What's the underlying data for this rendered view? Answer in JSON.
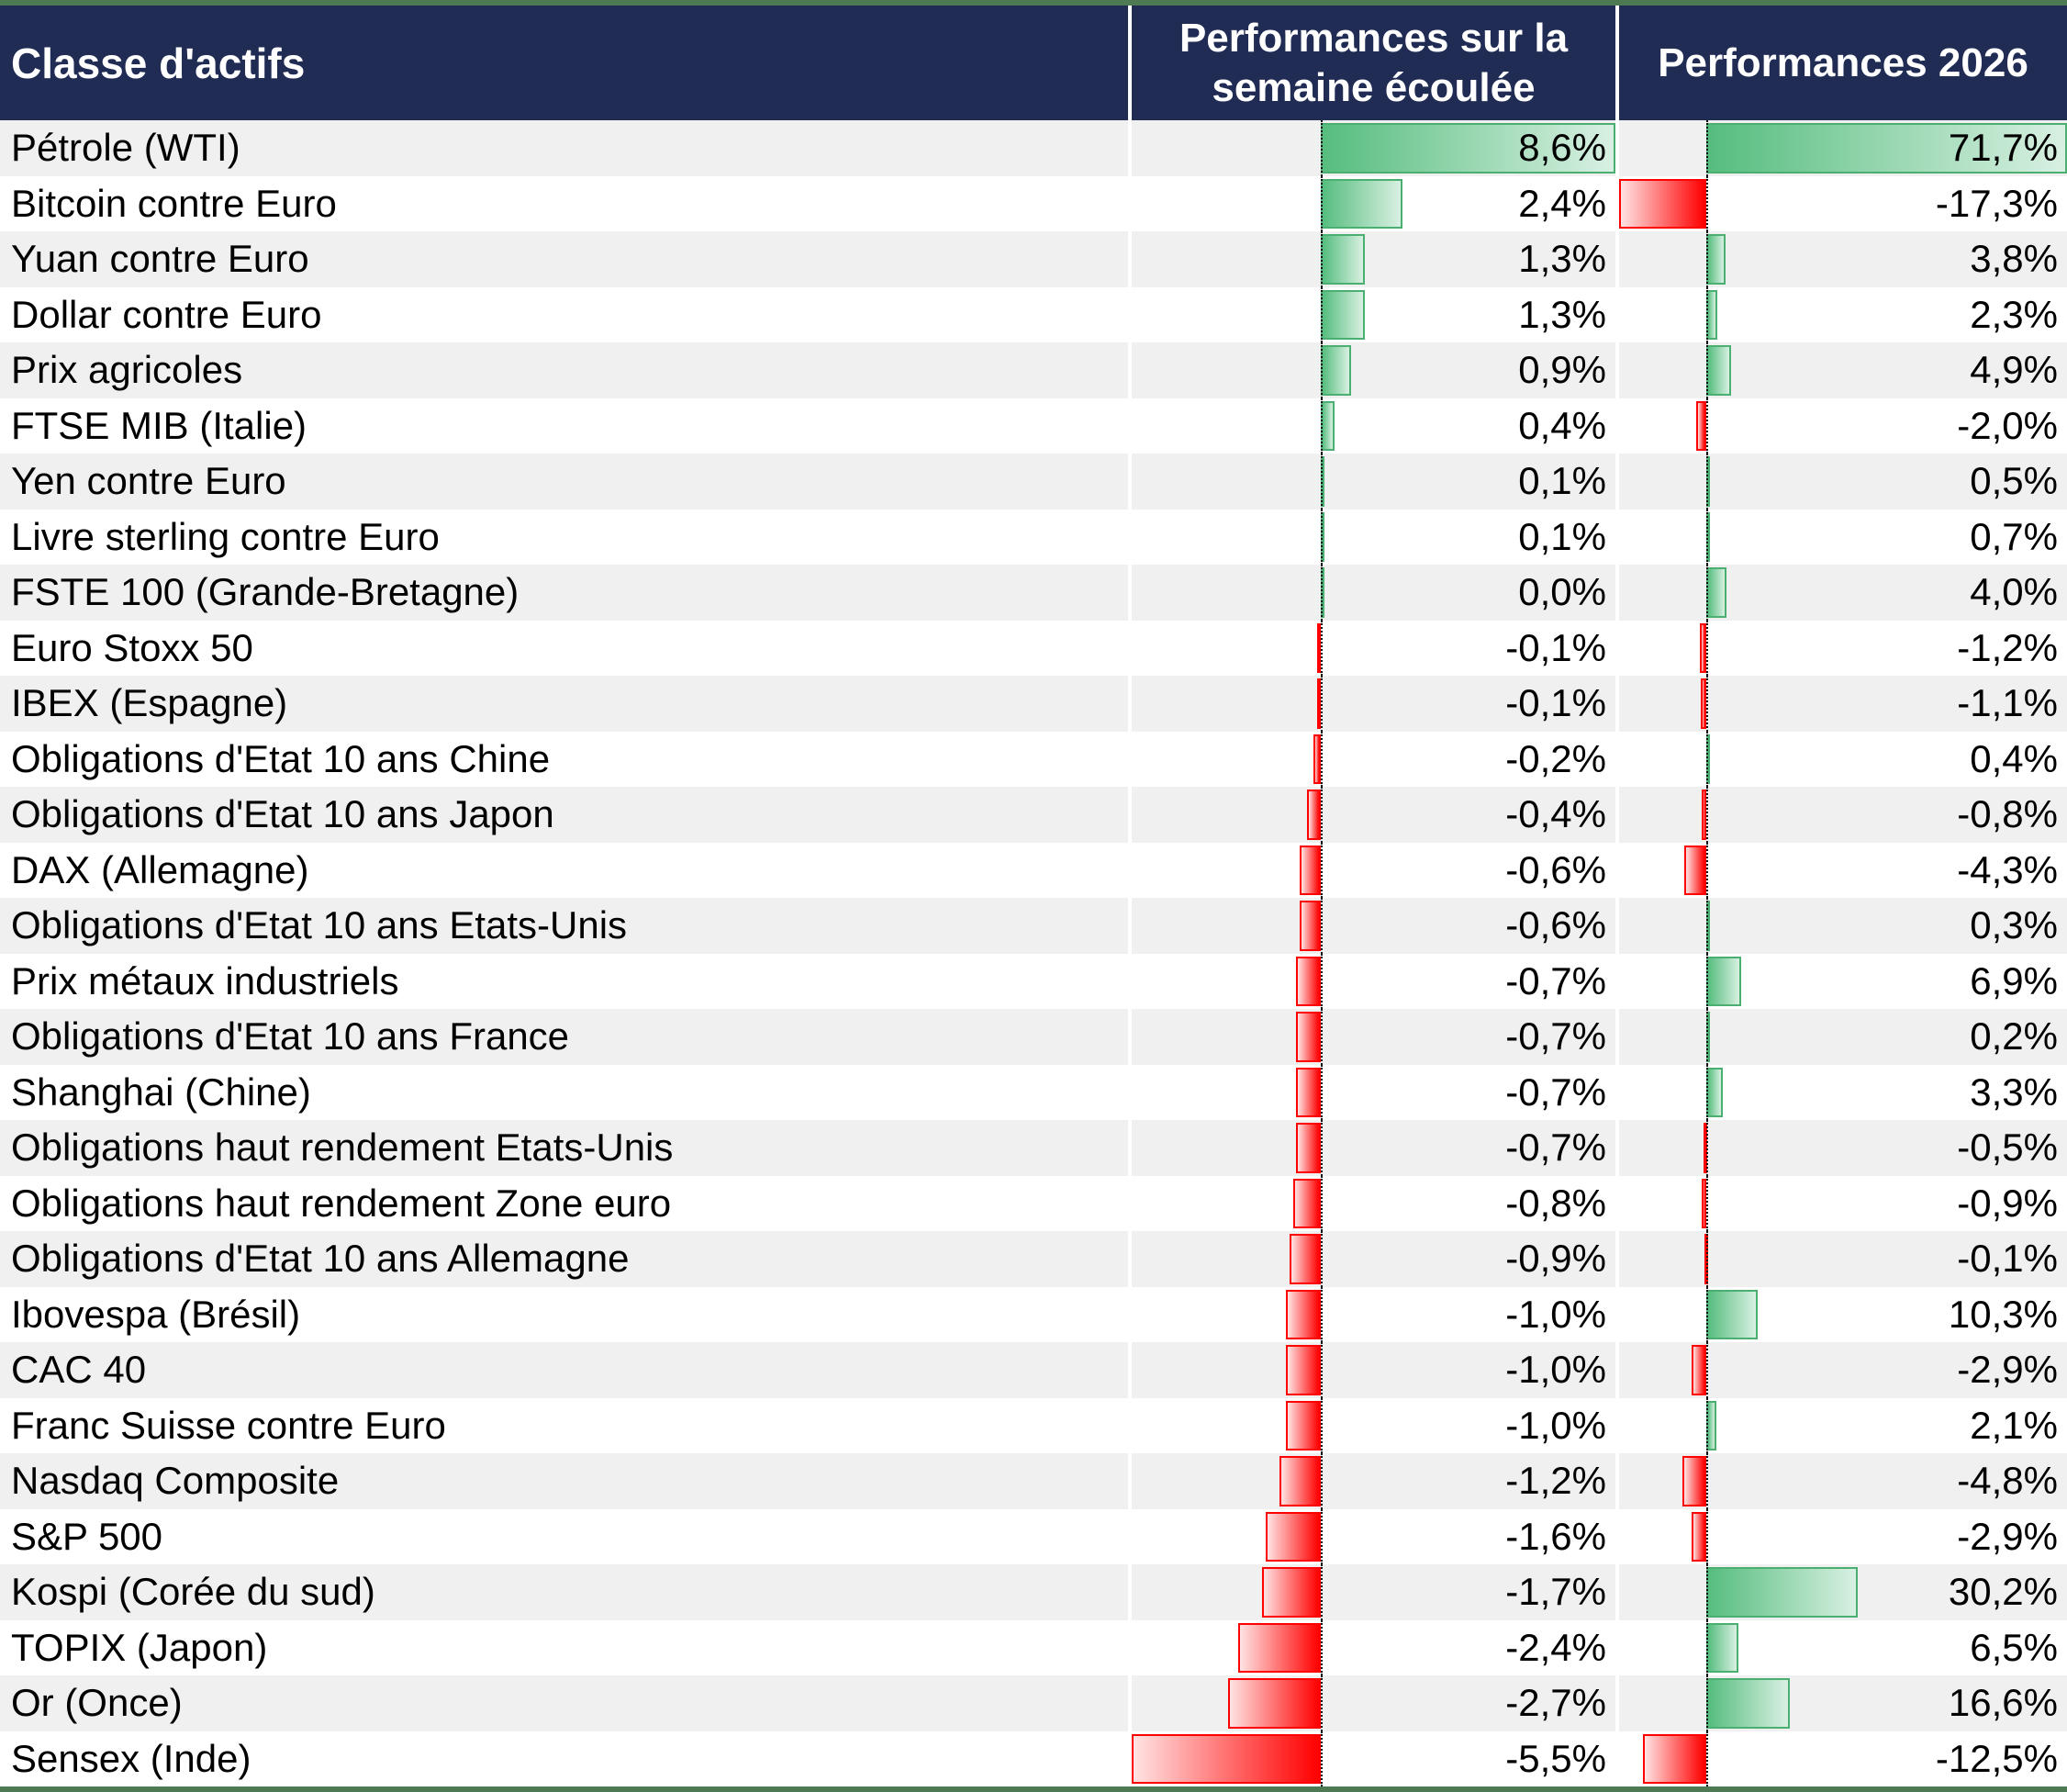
{
  "chart_data": {
    "type": "table",
    "title": "",
    "columns": [
      "Classe d'actifs",
      "Performances sur la semaine écoulée",
      "Performances 2026"
    ],
    "layout": {
      "grid": "striped-rows",
      "bars": "excel-gradient-databars",
      "axis": "dotted-zero-axis-per-column"
    },
    "bar_axes": {
      "week": {
        "min": -5.5,
        "max": 8.6
      },
      "ytd": {
        "min": -17.3,
        "max": 71.7
      }
    },
    "rows": [
      {
        "label": "Pétrole (WTI)",
        "week": 8.6,
        "week_display": "8,6%",
        "ytd": 71.7,
        "ytd_display": "71,7%"
      },
      {
        "label": "Bitcoin contre Euro",
        "week": 2.4,
        "week_display": "2,4%",
        "ytd": -17.3,
        "ytd_display": "-17,3%"
      },
      {
        "label": "Yuan contre Euro",
        "week": 1.3,
        "week_display": "1,3%",
        "ytd": 3.8,
        "ytd_display": "3,8%"
      },
      {
        "label": "Dollar contre Euro",
        "week": 1.3,
        "week_display": "1,3%",
        "ytd": 2.3,
        "ytd_display": "2,3%"
      },
      {
        "label": "Prix agricoles",
        "week": 0.9,
        "week_display": "0,9%",
        "ytd": 4.9,
        "ytd_display": "4,9%"
      },
      {
        "label": "FTSE MIB (Italie)",
        "week": 0.4,
        "week_display": "0,4%",
        "ytd": -2.0,
        "ytd_display": "-2,0%"
      },
      {
        "label": "Yen contre Euro",
        "week": 0.1,
        "week_display": "0,1%",
        "ytd": 0.5,
        "ytd_display": "0,5%"
      },
      {
        "label": "Livre sterling contre Euro",
        "week": 0.1,
        "week_display": "0,1%",
        "ytd": 0.7,
        "ytd_display": "0,7%"
      },
      {
        "label": "FSTE 100 (Grande-Bretagne)",
        "week": 0.0,
        "week_display": "0,0%",
        "ytd": 4.0,
        "ytd_display": "4,0%"
      },
      {
        "label": "Euro Stoxx 50",
        "week": -0.1,
        "week_display": "-0,1%",
        "ytd": -1.2,
        "ytd_display": "-1,2%"
      },
      {
        "label": "IBEX (Espagne)",
        "week": -0.1,
        "week_display": "-0,1%",
        "ytd": -1.1,
        "ytd_display": "-1,1%"
      },
      {
        "label": "Obligations d'Etat 10 ans Chine",
        "week": -0.2,
        "week_display": "-0,2%",
        "ytd": 0.4,
        "ytd_display": "0,4%"
      },
      {
        "label": "Obligations d'Etat 10 ans Japon",
        "week": -0.4,
        "week_display": "-0,4%",
        "ytd": -0.8,
        "ytd_display": "-0,8%"
      },
      {
        "label": "DAX (Allemagne)",
        "week": -0.6,
        "week_display": "-0,6%",
        "ytd": -4.3,
        "ytd_display": "-4,3%"
      },
      {
        "label": "Obligations d'Etat 10 ans Etats-Unis",
        "week": -0.6,
        "week_display": "-0,6%",
        "ytd": 0.3,
        "ytd_display": "0,3%"
      },
      {
        "label": "Prix métaux industriels",
        "week": -0.7,
        "week_display": "-0,7%",
        "ytd": 6.9,
        "ytd_display": "6,9%"
      },
      {
        "label": "Obligations d'Etat 10 ans France",
        "week": -0.7,
        "week_display": "-0,7%",
        "ytd": 0.2,
        "ytd_display": "0,2%"
      },
      {
        "label": "Shanghai (Chine)",
        "week": -0.7,
        "week_display": "-0,7%",
        "ytd": 3.3,
        "ytd_display": "3,3%"
      },
      {
        "label": "Obligations haut rendement Etats-Unis",
        "week": -0.7,
        "week_display": "-0,7%",
        "ytd": -0.5,
        "ytd_display": "-0,5%"
      },
      {
        "label": "Obligations haut rendement Zone euro",
        "week": -0.8,
        "week_display": "-0,8%",
        "ytd": -0.9,
        "ytd_display": "-0,9%"
      },
      {
        "label": "Obligations d'Etat 10 ans Allemagne",
        "week": -0.9,
        "week_display": "-0,9%",
        "ytd": -0.1,
        "ytd_display": "-0,1%"
      },
      {
        "label": "Ibovespa (Brésil)",
        "week": -1.0,
        "week_display": "-1,0%",
        "ytd": 10.3,
        "ytd_display": "10,3%"
      },
      {
        "label": "CAC 40",
        "week": -1.0,
        "week_display": "-1,0%",
        "ytd": -2.9,
        "ytd_display": "-2,9%"
      },
      {
        "label": "Franc Suisse contre Euro",
        "week": -1.0,
        "week_display": "-1,0%",
        "ytd": 2.1,
        "ytd_display": "2,1%"
      },
      {
        "label": "Nasdaq Composite",
        "week": -1.2,
        "week_display": "-1,2%",
        "ytd": -4.8,
        "ytd_display": "-4,8%"
      },
      {
        "label": "S&P 500",
        "week": -1.6,
        "week_display": "-1,6%",
        "ytd": -2.9,
        "ytd_display": "-2,9%"
      },
      {
        "label": "Kospi (Corée du sud)",
        "week": -1.7,
        "week_display": "-1,7%",
        "ytd": 30.2,
        "ytd_display": "30,2%"
      },
      {
        "label": "TOPIX (Japon)",
        "week": -2.4,
        "week_display": "-2,4%",
        "ytd": 6.5,
        "ytd_display": "6,5%"
      },
      {
        "label": "Or (Once)",
        "week": -2.7,
        "week_display": "-2,7%",
        "ytd": 16.6,
        "ytd_display": "16,6%"
      },
      {
        "label": "Sensex (Inde)",
        "week": -5.5,
        "week_display": "-5,5%",
        "ytd": -12.5,
        "ytd_display": "-12,5%"
      }
    ]
  },
  "colors": {
    "header_bg": "#212C55",
    "header_text": "#FFFFFF",
    "frame_border": "#4D7A52",
    "row_stripe": "#F0F0F0",
    "row_white": "#FFFFFF",
    "positive_bar_border": "#4CAF72",
    "positive_bar_solid": "#56BD7E",
    "positive_bar_light": "#D8F0E2",
    "negative_bar_border": "#FF0000",
    "negative_bar_solid": "#FF0000",
    "negative_bar_light": "#FFE3E3",
    "axis_line": "#111111",
    "text": "#000000"
  }
}
